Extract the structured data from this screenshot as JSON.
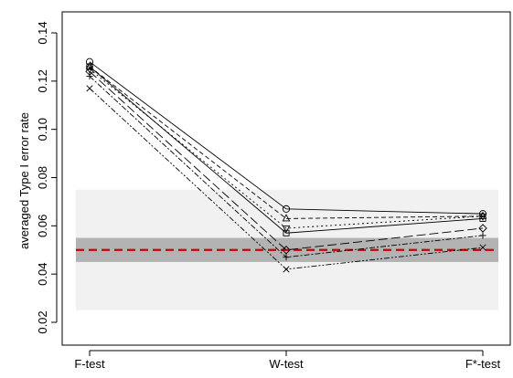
{
  "chart_data": {
    "type": "line",
    "title": "",
    "xlabel": "",
    "ylabel": "averaged Type I error rate",
    "categories": [
      "F-test",
      "W-test",
      "F*-test"
    ],
    "ylim": [
      0.02,
      0.14
    ],
    "yticks": [
      0.02,
      0.04,
      0.06,
      0.08,
      0.1,
      0.12,
      0.14
    ],
    "ytick_labels": [
      "0.02",
      "0.04",
      "0.06",
      "0.08",
      "0.10",
      "0.12",
      "0.14"
    ],
    "grid": false,
    "legend": "none",
    "bands": [
      {
        "from": 0.025,
        "to": 0.075,
        "color": "#f1f1f1"
      },
      {
        "from": 0.045,
        "to": 0.055,
        "color": "#b3b3b3"
      }
    ],
    "reference_line": {
      "y": 0.05,
      "color": "#cc0000",
      "style": "dashed"
    },
    "series": [
      {
        "marker": "circle",
        "dash": "",
        "values": [
          0.128,
          0.067,
          0.065
        ]
      },
      {
        "marker": "triangle-up",
        "dash": "5,3",
        "values": [
          0.126,
          0.063,
          0.064
        ]
      },
      {
        "marker": "triangle-down",
        "dash": "2,3",
        "values": [
          0.125,
          0.059,
          0.064
        ]
      },
      {
        "marker": "square",
        "dash": "",
        "values": [
          0.126,
          0.057,
          0.063
        ]
      },
      {
        "marker": "plus",
        "dash": "6,2,2,2",
        "values": [
          0.122,
          0.047,
          0.056
        ]
      },
      {
        "marker": "diamond",
        "dash": "10,4",
        "values": [
          0.124,
          0.05,
          0.059
        ]
      },
      {
        "marker": "x",
        "dash": "6,2,2,2,2,2",
        "values": [
          0.117,
          0.042,
          0.051
        ]
      }
    ]
  }
}
